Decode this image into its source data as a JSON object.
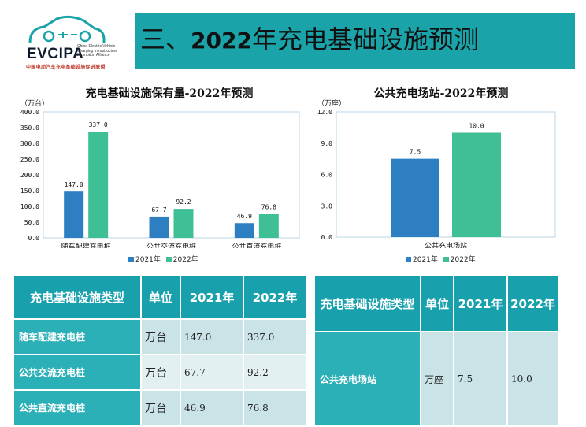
{
  "logo": {
    "name": "EVCIPA",
    "sub": "China Electric Vehicle Charging Infrastructure Promotion Alliance",
    "cn": "中国电动汽车充电基础设施促进联盟"
  },
  "banner": {
    "prefix": "三、",
    "year": "2022",
    "suffix": "年充电基础设施预测"
  },
  "colors": {
    "s2021": "#2e7fc2",
    "s2022": "#3fbf95",
    "banner": "#1aa3a8"
  },
  "chart_data": [
    {
      "type": "bar",
      "title": "充电基础设施保有量-2022年预测",
      "unit": "（万台）",
      "categories": [
        "随车配建充电桩",
        "公共交流充电桩",
        "公共直流充电桩"
      ],
      "series": [
        {
          "name": "2021年",
          "values": [
            147.0,
            67.7,
            46.9
          ],
          "labels": [
            "147.0",
            "67.7",
            "46.9"
          ]
        },
        {
          "name": "2022年",
          "values": [
            337.0,
            92.2,
            76.8
          ],
          "labels": [
            "337.0",
            "92.2",
            "76.8"
          ]
        }
      ],
      "yticks": [
        "0.0",
        "50.0",
        "100.0",
        "150.0",
        "200.0",
        "250.0",
        "300.0",
        "350.0",
        "400.0"
      ],
      "ylim": [
        0,
        400
      ],
      "grid": false,
      "legend": "bottom"
    },
    {
      "type": "bar",
      "title": "公共充电场站-2022年预测",
      "unit": "（万座）",
      "categories": [
        "公共充电场站"
      ],
      "series": [
        {
          "name": "2021年",
          "values": [
            7.5
          ],
          "labels": [
            "7.5"
          ]
        },
        {
          "name": "2022年",
          "values": [
            10.0
          ],
          "labels": [
            "10.0"
          ]
        }
      ],
      "yticks": [
        "0.0",
        "3.0",
        "6.0",
        "9.0",
        "12.0"
      ],
      "ylim": [
        0,
        12
      ],
      "grid": false,
      "legend": "bottom"
    }
  ],
  "table1": {
    "headers": [
      "充电基础设施类型",
      "单位",
      "2021年",
      "2022年"
    ],
    "rows": [
      [
        "随车配建充电桩",
        "万台",
        "147.0",
        "337.0"
      ],
      [
        "公共交流充电桩",
        "万台",
        "67.7",
        "92.2"
      ],
      [
        "公共直流充电桩",
        "万台",
        "46.9",
        "76.8"
      ]
    ]
  },
  "table2": {
    "headers": [
      "充电基础设施类型",
      "单位",
      "2021年",
      "2022年"
    ],
    "rows": [
      [
        "公共充电场站",
        "万座",
        "7.5",
        "10.0"
      ]
    ]
  }
}
